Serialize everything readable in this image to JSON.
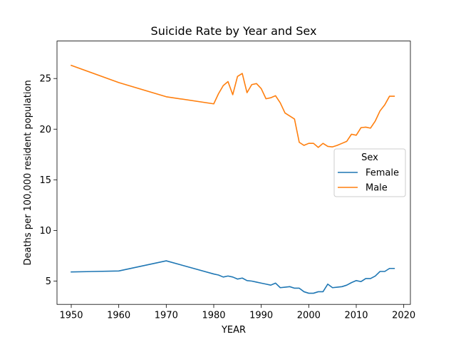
{
  "chart_data": {
    "type": "line",
    "title": "Suicide Rate by Year and Sex",
    "xlabel": "YEAR",
    "ylabel": "Deaths per 100,000 resident population",
    "xlim": [
      1947,
      2021.4
    ],
    "ylim": [
      2.7,
      28.7
    ],
    "xticks": [
      1950,
      1960,
      1970,
      1980,
      1990,
      2000,
      2010,
      2020
    ],
    "yticks": [
      5,
      10,
      15,
      20,
      25
    ],
    "legend": {
      "title": "Sex",
      "position": "center-right"
    },
    "grid": false,
    "series": [
      {
        "name": "Female",
        "color": "#1f77b4",
        "x": [
          1950,
          1960,
          1970,
          1980,
          1981,
          1982,
          1983,
          1984,
          1985,
          1986,
          1987,
          1988,
          1989,
          1990,
          1991,
          1992,
          1993,
          1994,
          1995,
          1996,
          1997,
          1998,
          1999,
          2000,
          2001,
          2002,
          2003,
          2004,
          2005,
          2006,
          2007,
          2008,
          2009,
          2010,
          2011,
          2012,
          2013,
          2014,
          2015,
          2016,
          2017,
          2018
        ],
        "y": [
          5.9,
          6.0,
          7.0,
          5.7,
          5.6,
          5.4,
          5.5,
          5.4,
          5.2,
          5.3,
          5.05,
          5.0,
          4.9,
          4.8,
          4.7,
          4.6,
          4.8,
          4.35,
          4.4,
          4.45,
          4.3,
          4.3,
          3.95,
          3.8,
          3.8,
          3.95,
          3.95,
          4.7,
          4.35,
          4.4,
          4.45,
          4.6,
          4.85,
          5.05,
          4.95,
          5.25,
          5.25,
          5.5,
          5.95,
          5.95,
          6.25,
          6.25
        ]
      },
      {
        "name": "Male",
        "color": "#ff7f0e",
        "x": [
          1950,
          1960,
          1970,
          1980,
          1981,
          1982,
          1983,
          1984,
          1985,
          1986,
          1987,
          1988,
          1989,
          1990,
          1991,
          1992,
          1993,
          1994,
          1995,
          1996,
          1997,
          1998,
          1999,
          2000,
          2001,
          2002,
          2003,
          2004,
          2005,
          2006,
          2007,
          2008,
          2009,
          2010,
          2011,
          2012,
          2013,
          2014,
          2015,
          2016,
          2017,
          2018
        ],
        "y": [
          26.3,
          24.6,
          23.2,
          22.5,
          23.5,
          24.3,
          24.7,
          23.4,
          25.2,
          25.5,
          23.6,
          24.4,
          24.5,
          24.0,
          23.0,
          23.1,
          23.3,
          22.6,
          21.6,
          21.3,
          21.0,
          18.7,
          18.4,
          18.6,
          18.6,
          18.2,
          18.6,
          18.3,
          18.25,
          18.4,
          18.6,
          18.8,
          19.5,
          19.4,
          20.15,
          20.2,
          20.1,
          20.8,
          21.8,
          22.4,
          23.25,
          23.25
        ]
      }
    ]
  }
}
